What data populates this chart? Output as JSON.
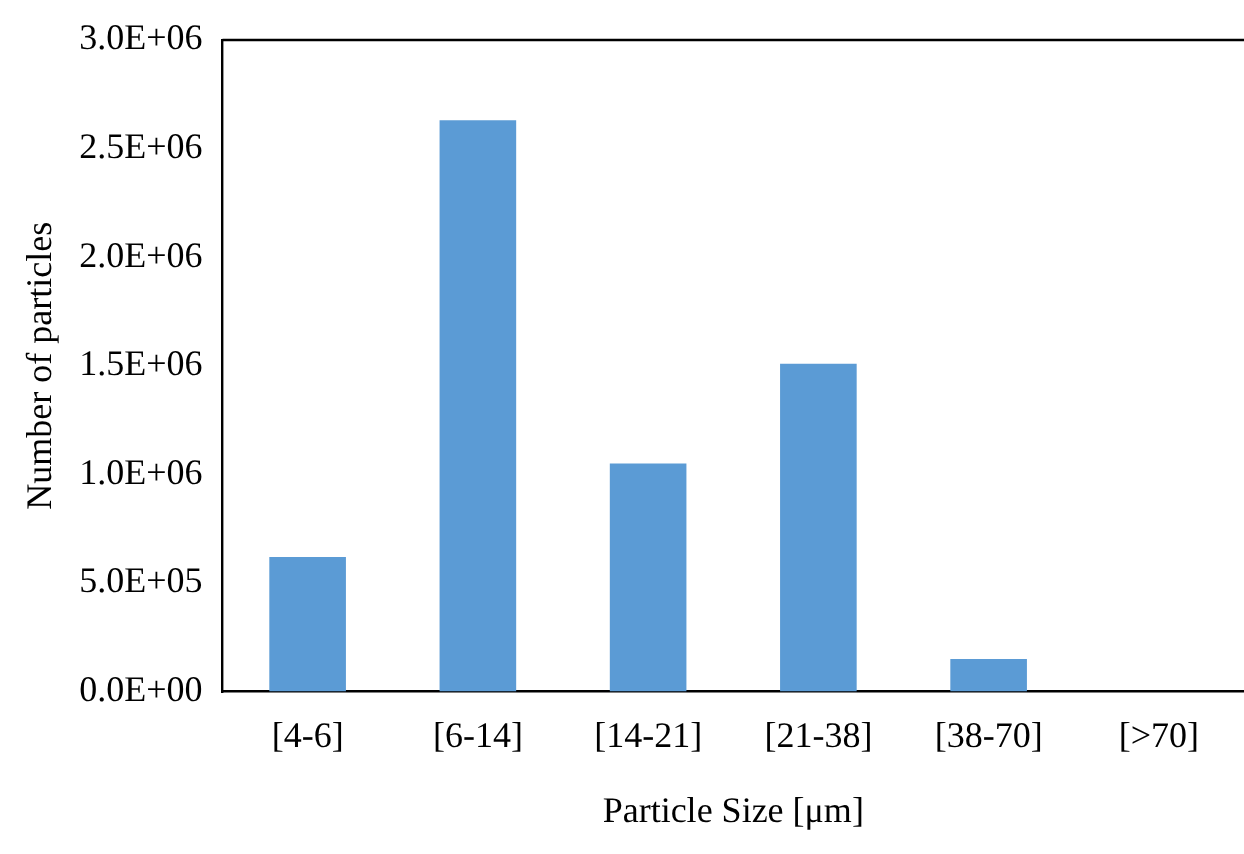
{
  "chart_data": {
    "type": "bar",
    "xlabel": "Particle Size [μm]",
    "ylabel": "Number of particles",
    "categories": [
      "[4-6]",
      "[6-14]",
      "[14-21]",
      "[21-38]",
      "[38-70]",
      "[>70]"
    ],
    "values": [
      620000,
      2630000,
      1050000,
      1510000,
      150000,
      0
    ],
    "color": "#5b9bd5",
    "ylim": [
      0,
      3000000
    ],
    "yticks": [
      {
        "value": 0,
        "label": "0.0E+00"
      },
      {
        "value": 500000,
        "label": "5.0E+05"
      },
      {
        "value": 1000000,
        "label": "1.0E+06"
      },
      {
        "value": 1500000,
        "label": "1.5E+06"
      },
      {
        "value": 2000000,
        "label": "2.0E+06"
      },
      {
        "value": 2500000,
        "label": "2.5E+06"
      },
      {
        "value": 3000000,
        "label": "3.0E+06"
      }
    ],
    "grid": false,
    "legend": false
  }
}
